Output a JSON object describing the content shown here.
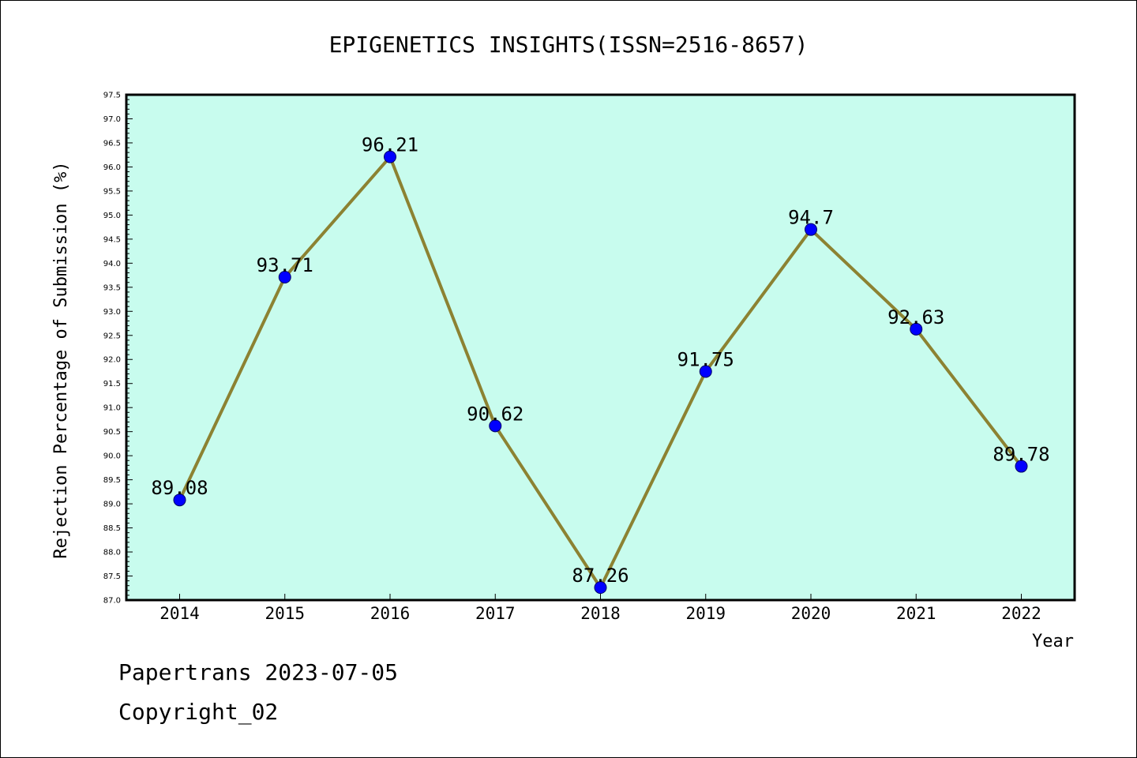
{
  "chart_data": {
    "type": "line",
    "title": "EPIGENETICS INSIGHTS(ISSN=2516-8657)",
    "xlabel": "Year",
    "ylabel": "Rejection Percentage of Submission (%)",
    "categories": [
      "2014",
      "2015",
      "2016",
      "2017",
      "2018",
      "2019",
      "2020",
      "2021",
      "2022"
    ],
    "series": [
      {
        "values": [
          89.08,
          93.71,
          96.21,
          90.62,
          87.26,
          91.75,
          94.7,
          92.63,
          89.78
        ]
      }
    ],
    "data_labels": [
      "89.08",
      "93.71",
      "96.21",
      "90.62",
      "87.26",
      "91.75",
      "94.7",
      "92.63",
      "89.78"
    ],
    "ylim": [
      87.0,
      97.5
    ],
    "yticks": [
      "87.0",
      "87.5",
      "88.0",
      "88.5",
      "89.0",
      "89.5",
      "90.0",
      "90.5",
      "91.0",
      "91.5",
      "92.0",
      "92.5",
      "93.0",
      "93.5",
      "94.0",
      "94.5",
      "95.0",
      "95.5",
      "96.0",
      "96.5",
      "97.0",
      "97.5"
    ],
    "grid": false,
    "colors": {
      "plot_background": "#c8fcee",
      "line": "#8c8232",
      "marker": "#0000ff"
    }
  },
  "footer": {
    "line1": "Papertrans 2023-07-05",
    "line2": "Copyright_02"
  }
}
